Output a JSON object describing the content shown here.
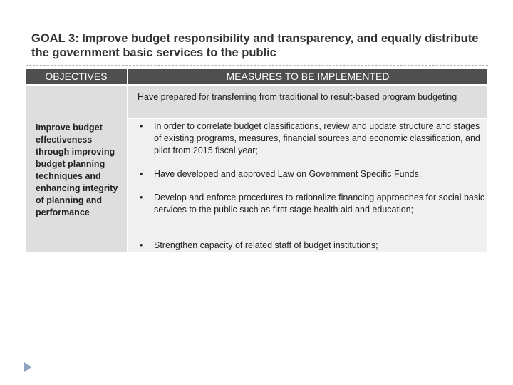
{
  "title": "GOAL 3: Improve budget responsibility and transparency, and equally distribute the government basic services to the public",
  "table": {
    "header_objectives": "OBJECTIVES",
    "header_measures": "MEASURES TO BE IMPLEMENTED",
    "objective": "Improve budget effectiveness through improving budget planning techniques and enhancing integrity of planning and performance",
    "prepared": "Have prepared for transferring from traditional to result-based program budgeting",
    "bullet_symbol": "•",
    "measures": [
      "In order to correlate budget classifications, review and update structure and stages of existing programs, measures, financial sources and economic classification, and pilot from 2015 fiscal year;",
      "Have developed and approved Law on Government Specific Funds;",
      "Develop and enforce procedures to rationalize financing approaches for social basic services to the public such as first stage health aid and education;",
      "Strengthen capacity of related staff of budget institutions;"
    ]
  },
  "colors": {
    "header_bg": "#4f4f4f",
    "cell_dark": "#dedede",
    "cell_light": "#f0f0f0",
    "dashed_rule": "#a9b6c4",
    "arrow": "#8ea4bf"
  },
  "icons": [
    "slide-arrow-icon"
  ]
}
